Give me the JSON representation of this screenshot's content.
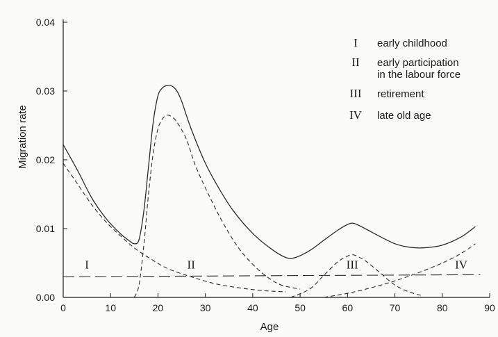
{
  "chart_data": {
    "type": "line",
    "xlabel": "Age",
    "ylabel": "Migration rate",
    "xlim": [
      0,
      90
    ],
    "ylim": [
      0,
      0.04
    ],
    "x_ticks": [
      0,
      10,
      20,
      30,
      40,
      50,
      60,
      70,
      80,
      90
    ],
    "x_tick_labels": [
      "0",
      "10",
      "20",
      "30",
      "40",
      "50",
      "60",
      "70",
      "80",
      "90"
    ],
    "y_ticks": [
      0,
      0.01,
      0.02,
      0.03,
      0.04
    ],
    "y_tick_labels": [
      "0.00",
      "0.01",
      "0.02",
      "0.03",
      "0.04"
    ],
    "grid": false,
    "legend_position": "top-right",
    "legend": [
      {
        "numeral": "I",
        "lines": [
          "early childhood"
        ]
      },
      {
        "numeral": "II",
        "lines": [
          "early participation",
          "in the labour force"
        ]
      },
      {
        "numeral": "III",
        "lines": [
          "retirement"
        ]
      },
      {
        "numeral": "IV",
        "lines": [
          "late old age"
        ]
      }
    ],
    "region_labels": [
      {
        "text": "I",
        "x": 5,
        "y": 0.0042
      },
      {
        "text": "II",
        "x": 27,
        "y": 0.0042
      },
      {
        "text": "III",
        "x": 61,
        "y": 0.0042
      },
      {
        "text": "IV",
        "x": 84,
        "y": 0.0042
      }
    ],
    "series": [
      {
        "style": "solid",
        "points": [
          [
            0,
            0.0222
          ],
          [
            3,
            0.0185
          ],
          [
            6,
            0.0145
          ],
          [
            9,
            0.0115
          ],
          [
            12,
            0.0093
          ],
          [
            14,
            0.0082
          ],
          [
            15,
            0.0078
          ],
          [
            16,
            0.0084
          ],
          [
            17,
            0.0125
          ],
          [
            18,
            0.019
          ],
          [
            19,
            0.0255
          ],
          [
            20,
            0.0293
          ],
          [
            21,
            0.0305
          ],
          [
            22,
            0.0308
          ],
          [
            23,
            0.0307
          ],
          [
            24,
            0.03
          ],
          [
            25,
            0.0285
          ],
          [
            27,
            0.0245
          ],
          [
            30,
            0.0195
          ],
          [
            33,
            0.0157
          ],
          [
            36,
            0.0125
          ],
          [
            40,
            0.0093
          ],
          [
            44,
            0.007
          ],
          [
            47,
            0.0058
          ],
          [
            49,
            0.0058
          ],
          [
            52,
            0.0068
          ],
          [
            55,
            0.0083
          ],
          [
            58,
            0.0098
          ],
          [
            60,
            0.0106
          ],
          [
            61,
            0.0108
          ],
          [
            62,
            0.0106
          ],
          [
            64,
            0.0099
          ],
          [
            67,
            0.0088
          ],
          [
            70,
            0.0078
          ],
          [
            73,
            0.0073
          ],
          [
            76,
            0.0072
          ],
          [
            80,
            0.0076
          ],
          [
            84,
            0.0088
          ],
          [
            87,
            0.0103
          ]
        ]
      },
      {
        "style": "dashed",
        "points": [
          [
            0,
            0.0195
          ],
          [
            3,
            0.0165
          ],
          [
            6,
            0.0135
          ],
          [
            9,
            0.011
          ],
          [
            12,
            0.009
          ],
          [
            15,
            0.0072
          ],
          [
            18,
            0.0058
          ],
          [
            22,
            0.0042
          ],
          [
            27,
            0.003
          ],
          [
            32,
            0.002
          ],
          [
            37,
            0.0014
          ],
          [
            42,
            0.001
          ],
          [
            47,
            0.0008
          ]
        ]
      },
      {
        "style": "dashed",
        "points": [
          [
            15,
            0.0
          ],
          [
            16,
            0.0018
          ],
          [
            17,
            0.0075
          ],
          [
            18,
            0.015
          ],
          [
            19,
            0.021
          ],
          [
            20,
            0.0245
          ],
          [
            21,
            0.026
          ],
          [
            22,
            0.0265
          ],
          [
            23,
            0.0262
          ],
          [
            24,
            0.0255
          ],
          [
            26,
            0.023
          ],
          [
            28,
            0.019
          ],
          [
            31,
            0.0145
          ],
          [
            34,
            0.0105
          ],
          [
            37,
            0.0072
          ],
          [
            40,
            0.0048
          ],
          [
            43,
            0.003
          ],
          [
            46,
            0.0018
          ],
          [
            50,
            0.0012
          ]
        ]
      },
      {
        "style": "dashed",
        "points": [
          [
            48,
            0.0
          ],
          [
            52,
            0.0012
          ],
          [
            55,
            0.0032
          ],
          [
            58,
            0.0052
          ],
          [
            60,
            0.006
          ],
          [
            61,
            0.0062
          ],
          [
            62,
            0.006
          ],
          [
            64,
            0.0052
          ],
          [
            67,
            0.0035
          ],
          [
            70,
            0.0018
          ],
          [
            73,
            0.0008
          ],
          [
            76,
            0.0002
          ]
        ]
      },
      {
        "style": "dashed",
        "points": [
          [
            55,
            0.0
          ],
          [
            60,
            0.0006
          ],
          [
            65,
            0.0014
          ],
          [
            70,
            0.0024
          ],
          [
            75,
            0.0036
          ],
          [
            80,
            0.005
          ],
          [
            84,
            0.0064
          ],
          [
            87,
            0.0078
          ]
        ]
      },
      {
        "style": "long-dashed",
        "points": [
          [
            0,
            0.003
          ],
          [
            88,
            0.0033
          ]
        ]
      }
    ]
  }
}
